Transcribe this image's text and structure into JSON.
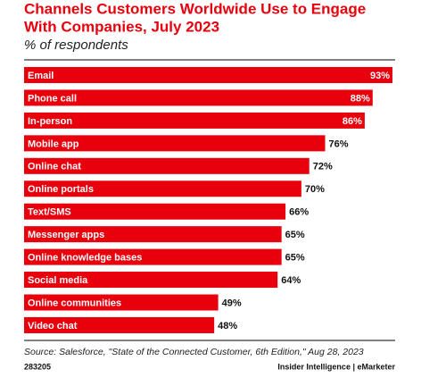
{
  "chart_data": {
    "type": "bar",
    "orientation": "horizontal",
    "title_lines": [
      "Channels Customers Worldwide Use to Engage",
      "With Companies, July 2023"
    ],
    "subtitle": "% of respondents",
    "categories": [
      "Email",
      "Phone call",
      "In-person",
      "Mobile app",
      "Online chat",
      "Online portals",
      "Text/SMS",
      "Messenger apps",
      "Online knowledge bases",
      "Social media",
      "Online communities",
      "Video chat"
    ],
    "values": [
      93,
      88,
      86,
      76,
      72,
      70,
      66,
      65,
      65,
      64,
      49,
      48
    ],
    "value_labels": [
      "93%",
      "88%",
      "86%",
      "76%",
      "72%",
      "70%",
      "66%",
      "65%",
      "65%",
      "64%",
      "49%",
      "48%"
    ],
    "color": "#e8000d",
    "source": "Source: Salesforce, \"State of the Connected Customer, 6th Edition,\" Aug 28, 2023",
    "chart_id": "283205",
    "brand": "Insider Intelligence | eMarketer"
  }
}
